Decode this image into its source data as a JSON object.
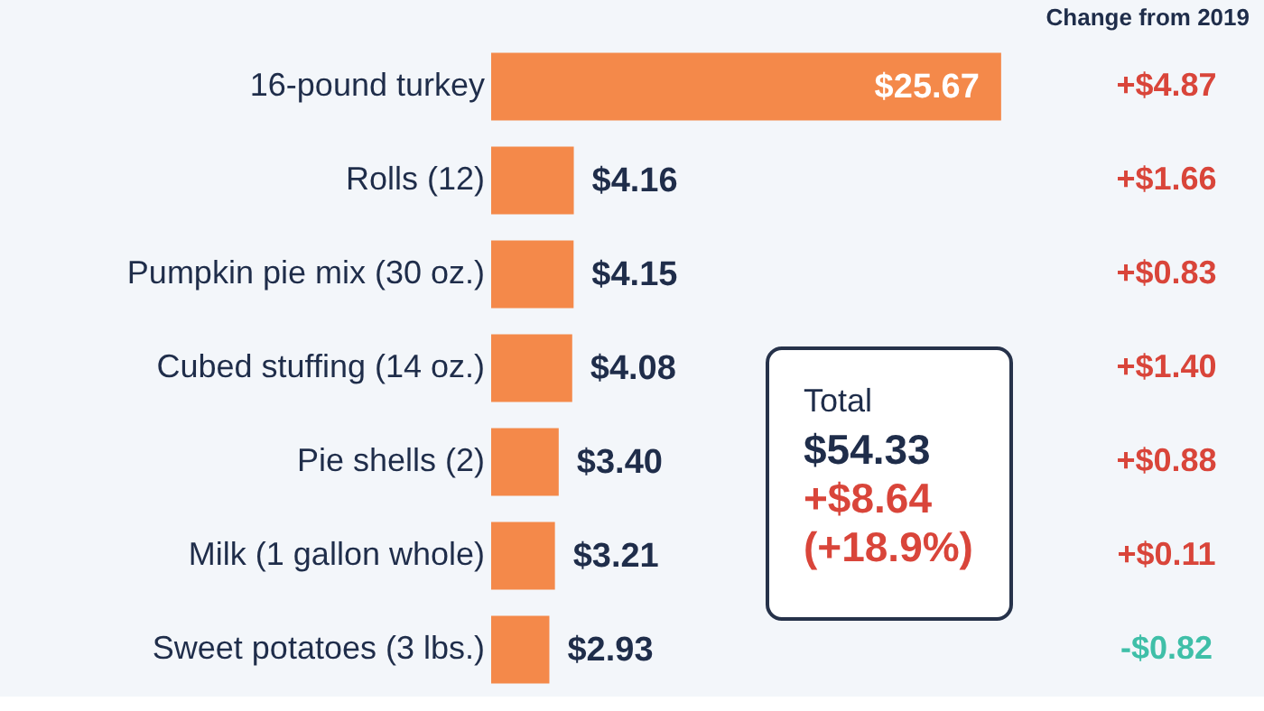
{
  "chart_data": {
    "type": "bar",
    "orientation": "horizontal",
    "categories": [
      "16-pound turkey",
      "Rolls (12)",
      "Pumpkin pie mix (30 oz.)",
      "Cubed stuffing (14 oz.)",
      "Pie shells (2)",
      "Milk (1 gallon whole)",
      "Sweet potatoes (3 lbs.)"
    ],
    "values": [
      25.67,
      4.16,
      4.15,
      4.08,
      3.4,
      3.21,
      2.93
    ],
    "value_labels": [
      "$25.67",
      "$4.16",
      "$4.15",
      "$4.08",
      "$3.40",
      "$3.21",
      "$2.93"
    ],
    "color": "#f4894a",
    "tick_labels": "y",
    "annotations": [
      "Change from 2019",
      "+$4.87",
      "+$1.66",
      "+$0.83",
      "+$1.40",
      "+$0.88",
      "+$0.11",
      "-$0.82",
      "Total",
      "$54.33",
      "+$8.64",
      "(+18.9%)"
    ]
  }
}
